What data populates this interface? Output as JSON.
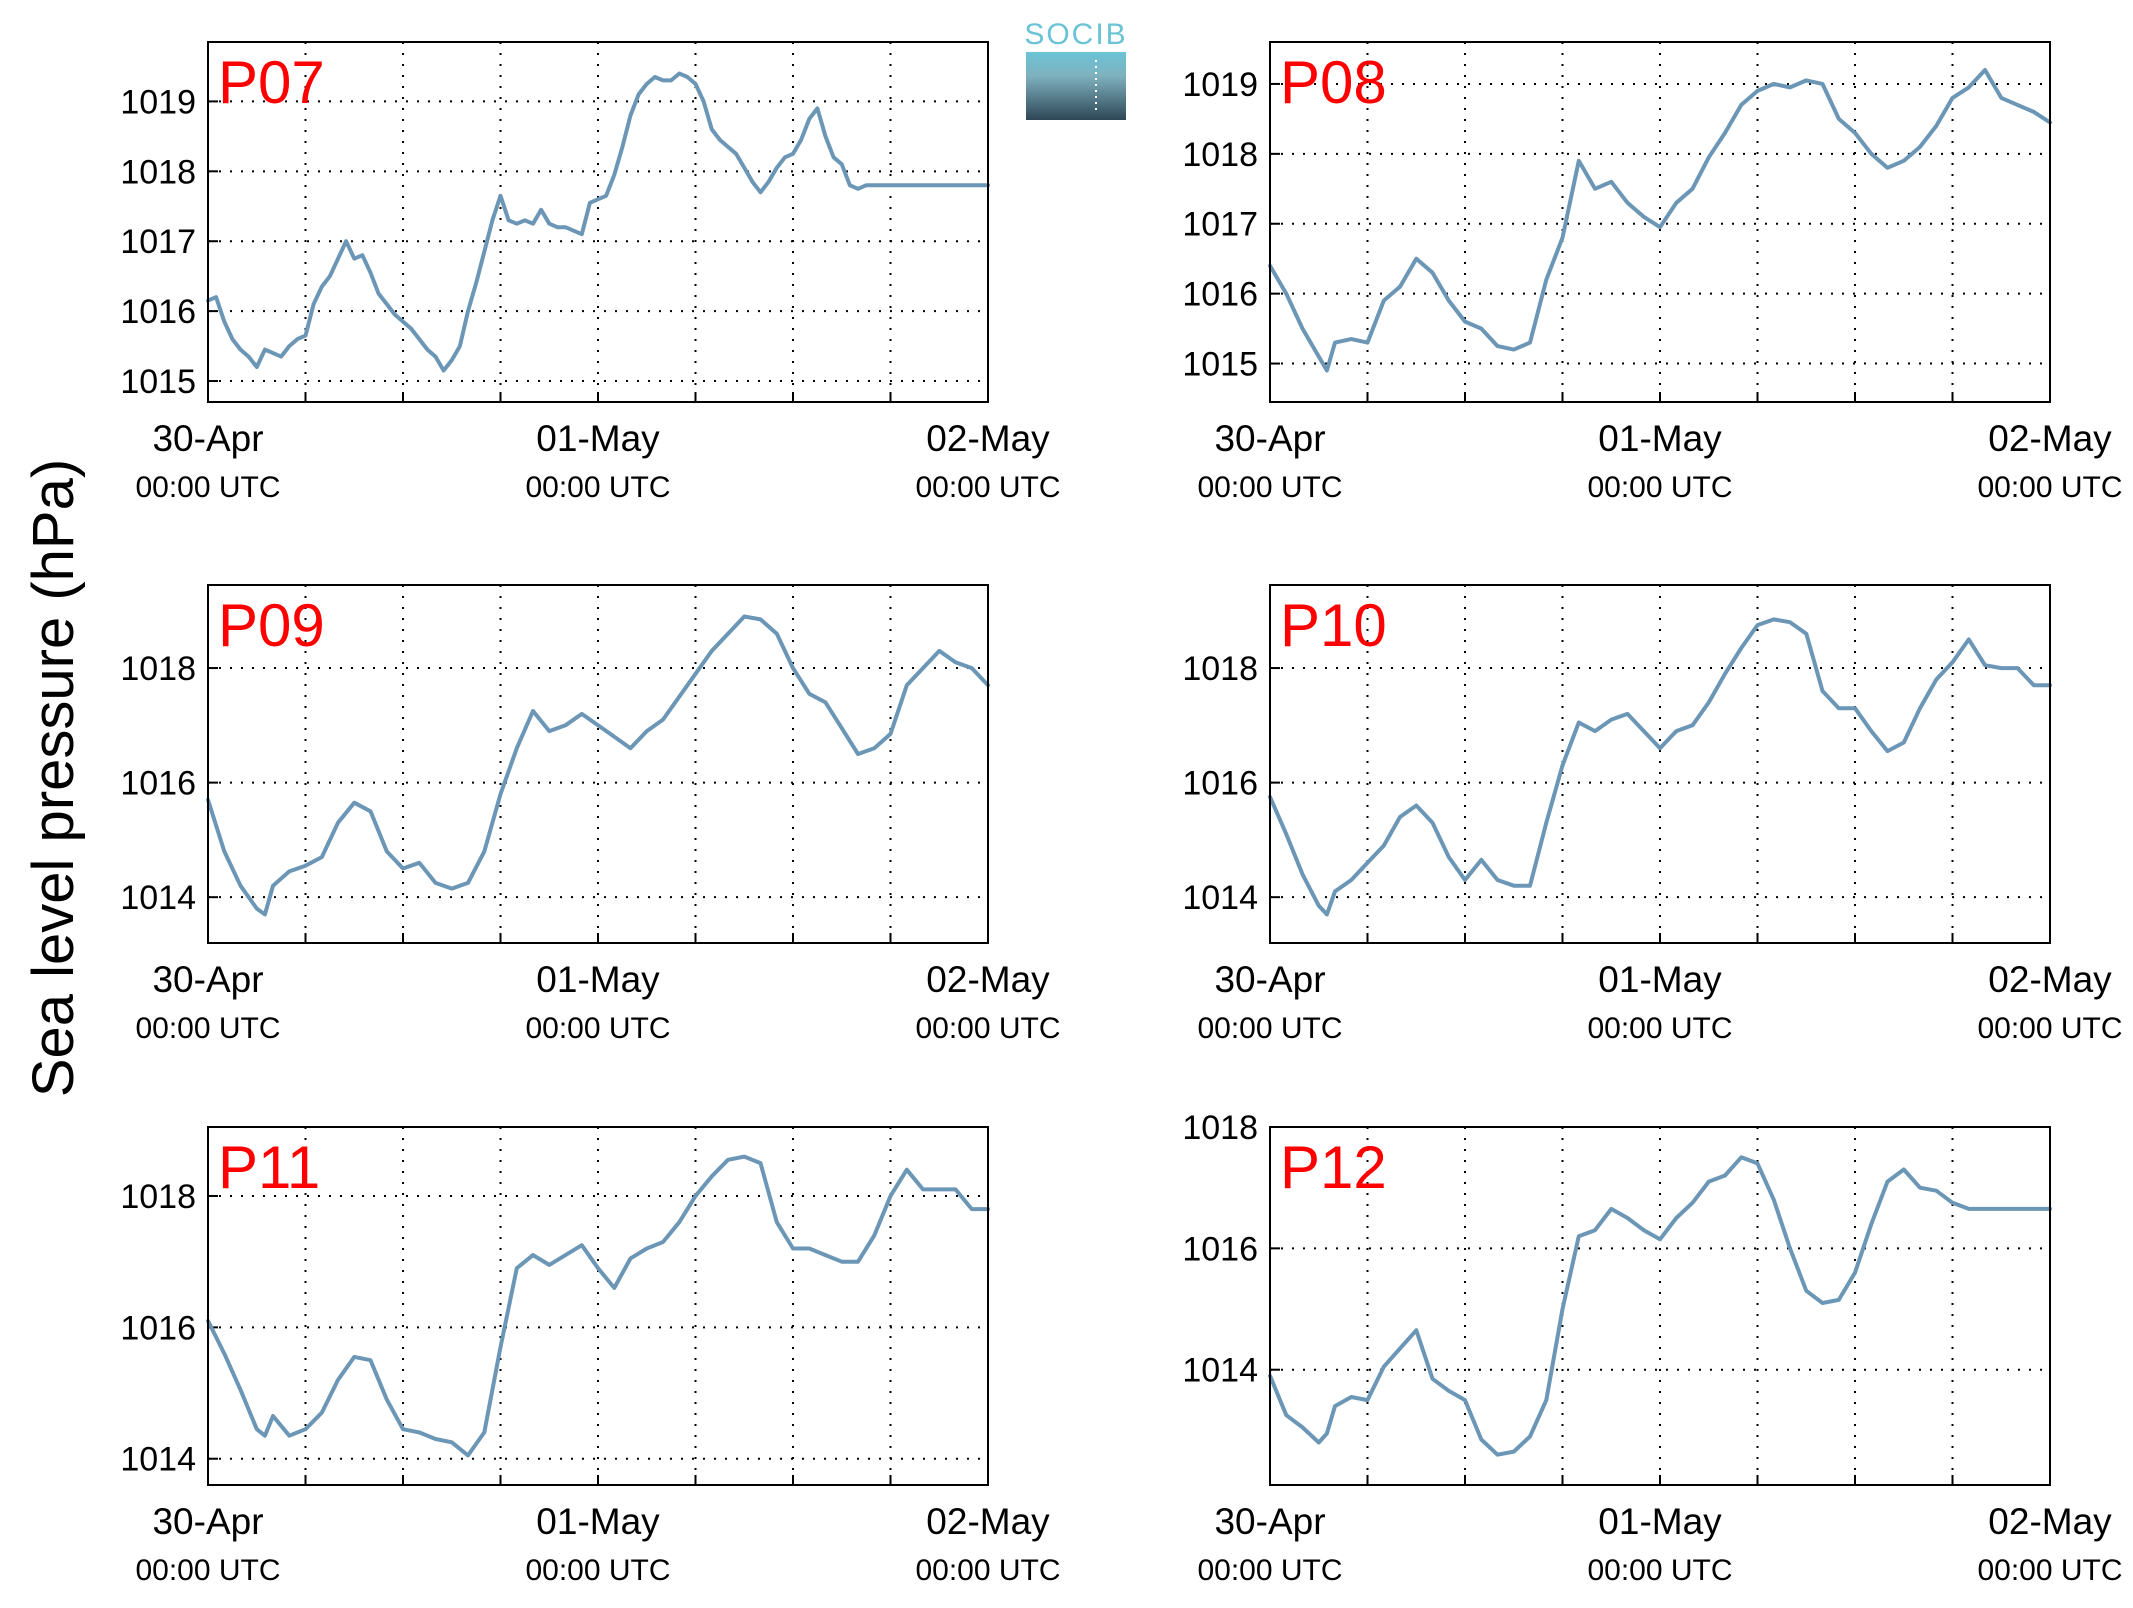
{
  "figure": {
    "ylabel": "Sea level pressure (hPa)",
    "logo_text": "SOCIB",
    "colors": {
      "line": "#6b96b6",
      "panel_label": "#ff0000",
      "logo_top": "#6ac4d6",
      "logo_bottom": "#2e4756"
    }
  },
  "chart_data": [
    {
      "type": "line",
      "panel": "P07",
      "xlabel": "",
      "ylabel": "",
      "x_range_hours": [
        0,
        48
      ],
      "x_ticks": [
        {
          "hour": 0,
          "date": "30-Apr",
          "time": "00:00 UTC"
        },
        {
          "hour": 24,
          "date": "01-May",
          "time": "00:00 UTC"
        },
        {
          "hour": 48,
          "date": "02-May",
          "time": "00:00 UTC"
        }
      ],
      "ylim": [
        1014.7,
        1019.85
      ],
      "yticks": [
        "1015",
        "1016",
        "1017",
        "1018",
        "1019"
      ],
      "grid": true,
      "series": [
        {
          "x": [
            0,
            0.5,
            1,
            1.5,
            2,
            2.5,
            3,
            3.5,
            4,
            4.5,
            5,
            5.5,
            6,
            6.5,
            7,
            7.5,
            8,
            8.5,
            9,
            9.5,
            10,
            10.5,
            11,
            11.5,
            12,
            12.5,
            13,
            13.5,
            14,
            14.5,
            15,
            15.5,
            16,
            16.5,
            17,
            17.5,
            18,
            18.5,
            19,
            19.5,
            20,
            20.5,
            21,
            21.5,
            22,
            22.5,
            23,
            23.5,
            24,
            24.5,
            25,
            25.5,
            26,
            26.5,
            27,
            27.5,
            28,
            28.5,
            29,
            29.5,
            30,
            30.5,
            31,
            31.5,
            32,
            32.5,
            33,
            33.5,
            34,
            34.5,
            35,
            35.5,
            36,
            36.5,
            37,
            37.5,
            38,
            38.5,
            39,
            39.5,
            40,
            40.5,
            41,
            41.5,
            42,
            42.5,
            43,
            43.5,
            44,
            44.5,
            45,
            45.5,
            46,
            46.5,
            47,
            47.5,
            48
          ],
          "values": [
            1016.15,
            1016.2,
            1015.85,
            1015.6,
            1015.45,
            1015.35,
            1015.2,
            1015.45,
            1015.4,
            1015.35,
            1015.5,
            1015.6,
            1015.65,
            1016.1,
            1016.35,
            1016.5,
            1016.75,
            1017,
            1016.75,
            1016.8,
            1016.55,
            1016.25,
            1016.1,
            1015.95,
            1015.85,
            1015.75,
            1015.6,
            1015.45,
            1015.35,
            1015.15,
            1015.3,
            1015.5,
            1016,
            1016.4,
            1016.85,
            1017.3,
            1017.65,
            1017.3,
            1017.25,
            1017.3,
            1017.25,
            1017.45,
            1017.25,
            1017.2,
            1017.2,
            1017.15,
            1017.1,
            1017.55,
            1017.6,
            1017.65,
            1017.95,
            1018.35,
            1018.8,
            1019.1,
            1019.25,
            1019.35,
            1019.3,
            1019.3,
            1019.4,
            1019.35,
            1019.25,
            1019,
            1018.6,
            1018.45,
            1018.35,
            1018.25,
            1018.05,
            1017.85,
            1017.7,
            1017.85,
            1018.05,
            1018.2,
            1018.25,
            1018.45,
            1018.75,
            1018.9,
            1018.5,
            1018.2,
            1018.1,
            1017.8,
            1017.75,
            1017.8,
            1017.8,
            1017.8,
            1017.8,
            1017.8,
            1017.8,
            1017.8,
            1017.8,
            1017.8,
            1017.8,
            1017.8,
            1017.8,
            1017.8,
            1017.8,
            1017.8,
            1017.8
          ]
        }
      ]
    },
    {
      "type": "line",
      "panel": "P08",
      "xlabel": "",
      "ylabel": "",
      "x_range_hours": [
        0,
        48
      ],
      "x_ticks": [
        {
          "hour": 0,
          "date": "30-Apr",
          "time": "00:00 UTC"
        },
        {
          "hour": 24,
          "date": "01-May",
          "time": "00:00 UTC"
        },
        {
          "hour": 48,
          "date": "02-May",
          "time": "00:00 UTC"
        }
      ],
      "ylim": [
        1014.45,
        1019.6
      ],
      "yticks": [
        "1015",
        "1016",
        "1017",
        "1018",
        "1019"
      ],
      "grid": true,
      "series": [
        {
          "x": [
            0,
            1,
            2,
            3,
            3.5,
            4,
            5,
            6,
            7,
            8,
            9,
            10,
            11,
            12,
            13,
            14,
            15,
            16,
            17,
            18,
            19,
            20,
            21,
            22,
            23,
            24,
            25,
            26,
            27,
            28,
            29,
            30,
            31,
            32,
            33,
            34,
            35,
            36,
            37,
            38,
            39,
            40,
            41,
            42,
            43,
            44,
            45,
            46,
            47,
            48
          ],
          "values": [
            1016.4,
            1016.0,
            1015.5,
            1015.1,
            1014.9,
            1015.3,
            1015.35,
            1015.3,
            1015.9,
            1016.1,
            1016.5,
            1016.3,
            1015.9,
            1015.6,
            1015.5,
            1015.25,
            1015.2,
            1015.3,
            1016.2,
            1016.8,
            1017.9,
            1017.5,
            1017.6,
            1017.3,
            1017.1,
            1016.95,
            1017.3,
            1017.5,
            1017.95,
            1018.3,
            1018.7,
            1018.9,
            1019.0,
            1018.95,
            1019.05,
            1019.0,
            1018.5,
            1018.3,
            1018.0,
            1017.8,
            1017.9,
            1018.1,
            1018.4,
            1018.8,
            1018.95,
            1019.2,
            1018.8,
            1018.7,
            1018.6,
            1018.45
          ]
        }
      ]
    },
    {
      "type": "line",
      "panel": "P09",
      "xlabel": "",
      "ylabel": "",
      "x_range_hours": [
        0,
        48
      ],
      "x_ticks": [
        {
          "hour": 0,
          "date": "30-Apr",
          "time": "00:00 UTC"
        },
        {
          "hour": 24,
          "date": "01-May",
          "time": "00:00 UTC"
        },
        {
          "hour": 48,
          "date": "02-May",
          "time": "00:00 UTC"
        }
      ],
      "ylim": [
        1013.2,
        1019.45
      ],
      "yticks": [
        "1014",
        "1016",
        "1018"
      ],
      "grid": true,
      "series": [
        {
          "x": [
            0,
            1,
            2,
            3,
            3.5,
            4,
            5,
            6,
            7,
            8,
            9,
            10,
            11,
            12,
            13,
            14,
            15,
            16,
            17,
            18,
            19,
            20,
            21,
            22,
            23,
            24,
            25,
            26,
            27,
            28,
            29,
            30,
            31,
            32,
            33,
            34,
            35,
            36,
            37,
            38,
            39,
            40,
            41,
            42,
            43,
            44,
            45,
            46,
            47,
            48
          ],
          "values": [
            1015.7,
            1014.8,
            1014.2,
            1013.8,
            1013.7,
            1014.2,
            1014.45,
            1014.55,
            1014.7,
            1015.3,
            1015.65,
            1015.5,
            1014.8,
            1014.5,
            1014.6,
            1014.25,
            1014.15,
            1014.25,
            1014.8,
            1015.8,
            1016.6,
            1017.25,
            1016.9,
            1017.0,
            1017.2,
            1017.0,
            1016.8,
            1016.6,
            1016.9,
            1017.1,
            1017.5,
            1017.9,
            1018.3,
            1018.6,
            1018.9,
            1018.85,
            1018.6,
            1018.0,
            1017.55,
            1017.4,
            1016.95,
            1016.5,
            1016.6,
            1016.85,
            1017.7,
            1018.0,
            1018.3,
            1018.1,
            1018.0,
            1017.7
          ]
        }
      ]
    },
    {
      "type": "line",
      "panel": "P10",
      "xlabel": "",
      "ylabel": "",
      "x_range_hours": [
        0,
        48
      ],
      "x_ticks": [
        {
          "hour": 0,
          "date": "30-Apr",
          "time": "00:00 UTC"
        },
        {
          "hour": 24,
          "date": "01-May",
          "time": "00:00 UTC"
        },
        {
          "hour": 48,
          "date": "02-May",
          "time": "00:00 UTC"
        }
      ],
      "ylim": [
        1013.2,
        1019.45
      ],
      "yticks": [
        "1014",
        "1016",
        "1018"
      ],
      "grid": true,
      "series": [
        {
          "x": [
            0,
            1,
            2,
            3,
            3.5,
            4,
            5,
            6,
            7,
            8,
            9,
            10,
            11,
            12,
            13,
            14,
            15,
            16,
            17,
            18,
            19,
            20,
            21,
            22,
            23,
            24,
            25,
            26,
            27,
            28,
            29,
            30,
            31,
            32,
            33,
            34,
            35,
            36,
            37,
            38,
            39,
            40,
            41,
            42,
            43,
            44,
            45,
            46,
            47,
            48
          ],
          "values": [
            1015.75,
            1015.1,
            1014.4,
            1013.85,
            1013.7,
            1014.1,
            1014.3,
            1014.6,
            1014.9,
            1015.4,
            1015.6,
            1015.3,
            1014.7,
            1014.3,
            1014.65,
            1014.3,
            1014.2,
            1014.2,
            1015.3,
            1016.3,
            1017.05,
            1016.9,
            1017.1,
            1017.2,
            1016.9,
            1016.6,
            1016.9,
            1017.0,
            1017.4,
            1017.9,
            1018.35,
            1018.75,
            1018.85,
            1018.8,
            1018.6,
            1017.6,
            1017.3,
            1017.3,
            1016.9,
            1016.55,
            1016.7,
            1017.3,
            1017.8,
            1018.1,
            1018.5,
            1018.05,
            1018.0,
            1018.0,
            1017.7,
            1017.7
          ]
        }
      ]
    },
    {
      "type": "line",
      "panel": "P11",
      "xlabel": "",
      "ylabel": "",
      "x_range_hours": [
        0,
        48
      ],
      "x_ticks": [
        {
          "hour": 0,
          "date": "30-Apr",
          "time": "00:00 UTC"
        },
        {
          "hour": 24,
          "date": "01-May",
          "time": "00:00 UTC"
        },
        {
          "hour": 48,
          "date": "02-May",
          "time": "00:00 UTC"
        }
      ],
      "ylim": [
        1013.6,
        1019.05
      ],
      "yticks": [
        "1014",
        "1016",
        "1018"
      ],
      "grid": true,
      "series": [
        {
          "x": [
            0,
            1,
            2,
            3,
            3.5,
            4,
            5,
            6,
            7,
            8,
            9,
            10,
            11,
            12,
            13,
            14,
            15,
            16,
            17,
            18,
            19,
            20,
            21,
            22,
            23,
            24,
            25,
            26,
            27,
            28,
            29,
            30,
            31,
            32,
            33,
            34,
            35,
            36,
            37,
            38,
            39,
            40,
            41,
            42,
            43,
            44,
            45,
            46,
            47,
            48
          ],
          "values": [
            1016.1,
            1015.6,
            1015.05,
            1014.45,
            1014.35,
            1014.65,
            1014.35,
            1014.45,
            1014.7,
            1015.2,
            1015.55,
            1015.5,
            1014.9,
            1014.45,
            1014.4,
            1014.3,
            1014.25,
            1014.05,
            1014.4,
            1015.7,
            1016.9,
            1017.1,
            1016.95,
            1017.1,
            1017.25,
            1016.9,
            1016.6,
            1017.05,
            1017.2,
            1017.3,
            1017.6,
            1018.0,
            1018.3,
            1018.55,
            1018.6,
            1018.5,
            1017.6,
            1017.2,
            1017.2,
            1017.1,
            1017.0,
            1017.0,
            1017.4,
            1018.0,
            1018.4,
            1018.1,
            1018.1,
            1018.1,
            1017.8,
            1017.8
          ]
        }
      ]
    },
    {
      "type": "line",
      "panel": "P12",
      "xlabel": "",
      "ylabel": "",
      "x_range_hours": [
        0,
        48
      ],
      "x_ticks": [
        {
          "hour": 0,
          "date": "30-Apr",
          "time": "00:00 UTC"
        },
        {
          "hour": 24,
          "date": "01-May",
          "time": "00:00 UTC"
        },
        {
          "hour": 48,
          "date": "02-May",
          "time": "00:00 UTC"
        }
      ],
      "ylim": [
        1012.1,
        1018.0
      ],
      "yticks": [
        "1014",
        "1016",
        "1018"
      ],
      "grid": true,
      "series": [
        {
          "x": [
            0,
            1,
            2,
            3,
            3.5,
            4,
            5,
            6,
            7,
            8,
            9,
            10,
            11,
            12,
            13,
            14,
            15,
            16,
            17,
            18,
            19,
            20,
            21,
            22,
            23,
            24,
            25,
            26,
            27,
            28,
            29,
            30,
            31,
            32,
            33,
            34,
            35,
            36,
            37,
            38,
            39,
            40,
            41,
            42,
            43,
            44,
            45,
            46,
            47,
            48
          ],
          "values": [
            1013.9,
            1013.25,
            1013.05,
            1012.8,
            1012.95,
            1013.4,
            1013.55,
            1013.5,
            1014.05,
            1014.35,
            1014.65,
            1013.85,
            1013.65,
            1013.5,
            1012.85,
            1012.6,
            1012.65,
            1012.9,
            1013.5,
            1015.0,
            1016.2,
            1016.3,
            1016.65,
            1016.5,
            1016.3,
            1016.15,
            1016.5,
            1016.75,
            1017.1,
            1017.2,
            1017.5,
            1017.4,
            1016.8,
            1016.0,
            1015.3,
            1015.1,
            1015.15,
            1015.6,
            1016.4,
            1017.1,
            1017.3,
            1017.0,
            1016.95,
            1016.75,
            1016.65,
            1016.65,
            1016.65,
            1016.65,
            1016.65,
            1016.65
          ]
        }
      ]
    }
  ]
}
